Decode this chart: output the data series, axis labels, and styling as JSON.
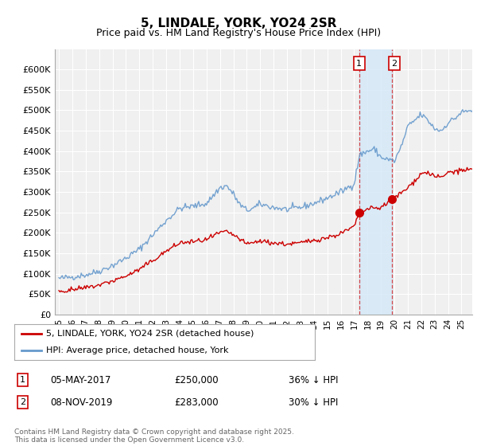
{
  "title": "5, LINDALE, YORK, YO24 2SR",
  "subtitle": "Price paid vs. HM Land Registry's House Price Index (HPI)",
  "background_color": "#ffffff",
  "plot_bg_color": "#f0f0f0",
  "grid_color": "#ffffff",
  "hpi_color": "#6699cc",
  "price_color": "#cc0000",
  "sale1_date": "05-MAY-2017",
  "sale1_price": 250000,
  "sale1_label": "36% ↓ HPI",
  "sale2_date": "08-NOV-2019",
  "sale2_price": 283000,
  "sale2_label": "30% ↓ HPI",
  "legend_label_red": "5, LINDALE, YORK, YO24 2SR (detached house)",
  "legend_label_blue": "HPI: Average price, detached house, York",
  "footer": "Contains HM Land Registry data © Crown copyright and database right 2025.\nThis data is licensed under the Open Government Licence v3.0.",
  "sale1_x": 2017.37,
  "sale2_x": 2019.84,
  "sale1_marker_y": 250000,
  "sale2_marker_y": 283000,
  "shade_x1": 2017.37,
  "shade_x2": 2019.84,
  "ylim": [
    0,
    650000
  ],
  "yticks": [
    0,
    50000,
    100000,
    150000,
    200000,
    250000,
    300000,
    350000,
    400000,
    450000,
    500000,
    550000,
    600000
  ],
  "ytick_labels": [
    "£0",
    "£50K",
    "£100K",
    "£150K",
    "£200K",
    "£250K",
    "£300K",
    "£350K",
    "£400K",
    "£450K",
    "£500K",
    "£550K",
    "£600K"
  ],
  "xlim_min": 1994.7,
  "xlim_max": 2025.8
}
